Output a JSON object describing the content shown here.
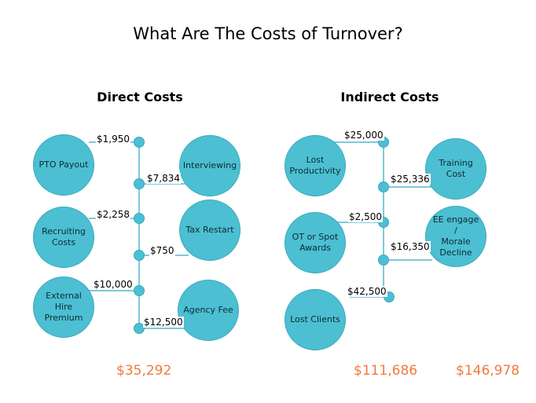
{
  "title": "What Are The Costs of Turnover?",
  "direct": {
    "heading": "Direct Costs",
    "items": [
      {
        "label": "PTO Payout",
        "amount": "$1,950"
      },
      {
        "label": "Interviewing",
        "amount": "$7,834"
      },
      {
        "label": "Recruiting\nCosts",
        "amount": "$2,258"
      },
      {
        "label": "Tax Restart",
        "amount": "$750"
      },
      {
        "label": "External Hire\nPremium",
        "amount": "$10,000"
      },
      {
        "label": "Agency Fee",
        "amount": "$12,500"
      }
    ],
    "total": "$35,292"
  },
  "indirect": {
    "heading": "Indirect Costs",
    "items": [
      {
        "label": "Lost\nProductivity",
        "amount": "$25,000"
      },
      {
        "label": "Training Cost",
        "amount": "$25,336"
      },
      {
        "label": "OT or Spot\nAwards",
        "amount": "$2,500"
      },
      {
        "label": "EE engage /\nMorale\nDecline",
        "amount": "$16,350"
      },
      {
        "label": "Lost Clients",
        "amount": "$42,500"
      }
    ],
    "total": "$111,686"
  },
  "grand_total": "$146,978",
  "colors": {
    "circle": "#4cbfd3",
    "line": "#7ec9dc",
    "total_text": "#f07a3c"
  }
}
